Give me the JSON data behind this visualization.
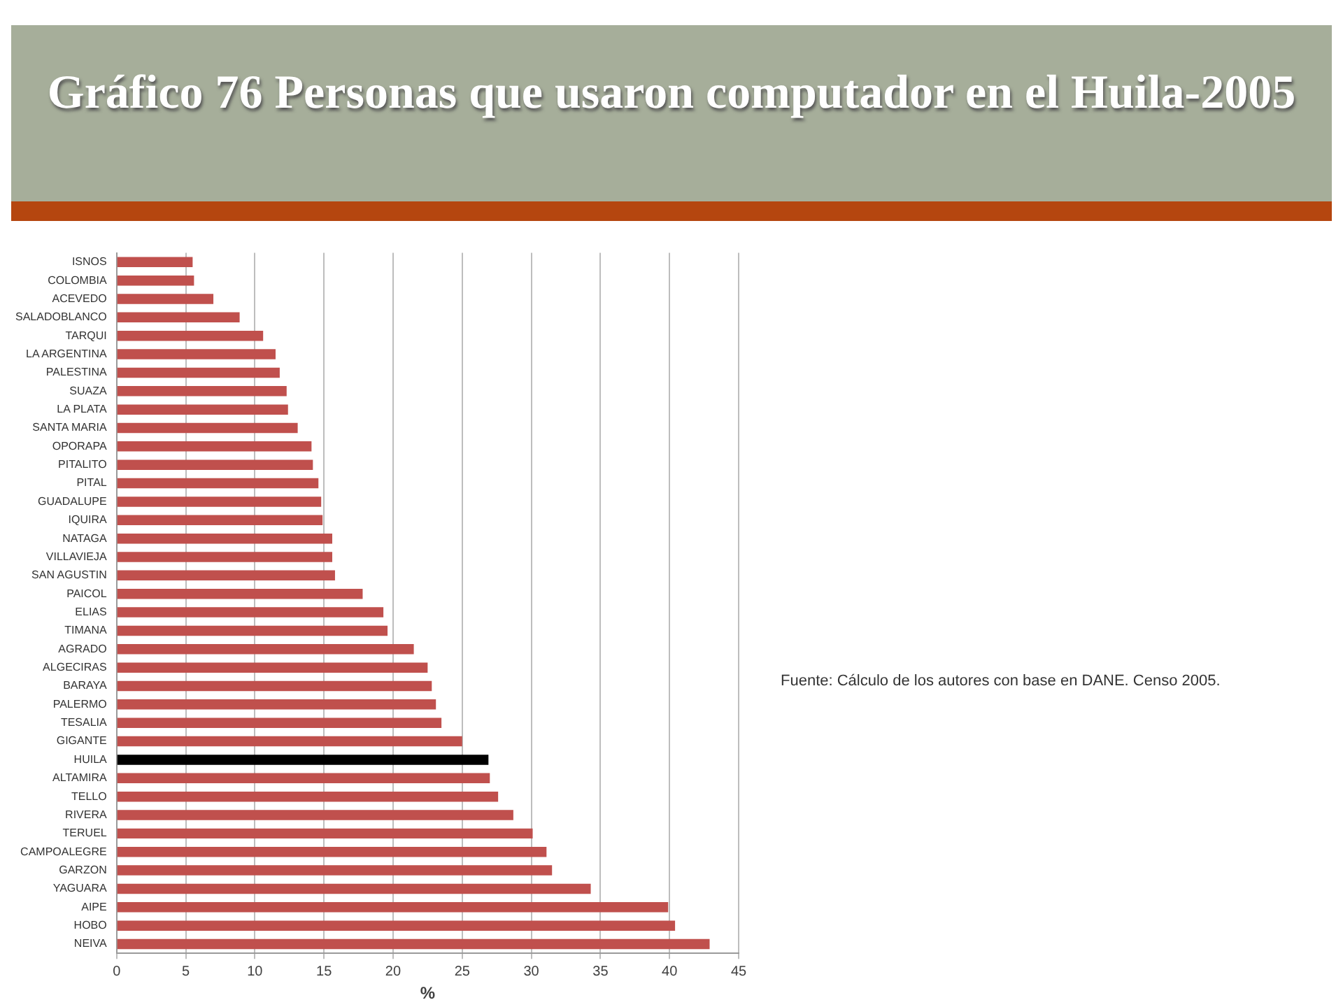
{
  "chart_data": {
    "type": "bar",
    "orientation": "horizontal",
    "title": "Gráfico 76 Personas que usaron computador en el Huila-2005",
    "xlabel": "%",
    "categories": [
      "ISNOS",
      "COLOMBIA",
      "ACEVEDO",
      "SALADOBLANCO",
      "TARQUI",
      "LA ARGENTINA",
      "PALESTINA",
      "SUAZA",
      "LA PLATA",
      "SANTA MARIA",
      "OPORAPA",
      "PITALITO",
      "PITAL",
      "GUADALUPE",
      "IQUIRA",
      "NATAGA",
      "VILLAVIEJA",
      "SAN AGUSTIN",
      "PAICOL",
      "ELIAS",
      "TIMANA",
      "AGRADO",
      "ALGECIRAS",
      "BARAYA",
      "PALERMO",
      "TESALIA",
      "GIGANTE",
      "HUILA",
      "ALTAMIRA",
      "TELLO",
      "RIVERA",
      "TERUEL",
      "CAMPOALEGRE",
      "GARZON",
      "YAGUARA",
      "AIPE",
      "HOBO",
      "NEIVA"
    ],
    "values": [
      5.5,
      5.6,
      7.0,
      8.9,
      10.6,
      11.5,
      11.8,
      12.3,
      12.4,
      13.1,
      14.1,
      14.2,
      14.6,
      14.8,
      14.9,
      15.6,
      15.6,
      15.8,
      17.8,
      19.3,
      19.6,
      21.5,
      22.5,
      22.8,
      23.1,
      23.5,
      25.0,
      26.9,
      27.0,
      27.6,
      28.7,
      30.1,
      31.1,
      31.5,
      34.3,
      39.9,
      40.4,
      42.9
    ],
    "colors": [
      "#c0504d",
      "#c0504d",
      "#c0504d",
      "#c0504d",
      "#c0504d",
      "#c0504d",
      "#c0504d",
      "#c0504d",
      "#c0504d",
      "#c0504d",
      "#c0504d",
      "#c0504d",
      "#c0504d",
      "#c0504d",
      "#c0504d",
      "#c0504d",
      "#c0504d",
      "#c0504d",
      "#c0504d",
      "#c0504d",
      "#c0504d",
      "#c0504d",
      "#c0504d",
      "#c0504d",
      "#c0504d",
      "#c0504d",
      "#c0504d",
      "#000000",
      "#c0504d",
      "#c0504d",
      "#c0504d",
      "#c0504d",
      "#c0504d",
      "#c0504d",
      "#c0504d",
      "#c0504d",
      "#c0504d",
      "#c0504d"
    ],
    "xlim": [
      0,
      45
    ],
    "xticks": [
      0,
      5,
      10,
      15,
      20,
      25,
      30,
      35,
      40,
      45
    ],
    "grid": "x",
    "legend": false,
    "annotations": [
      "Fuente: Cálculo de los autores con base en DANE. Censo 2005."
    ]
  }
}
